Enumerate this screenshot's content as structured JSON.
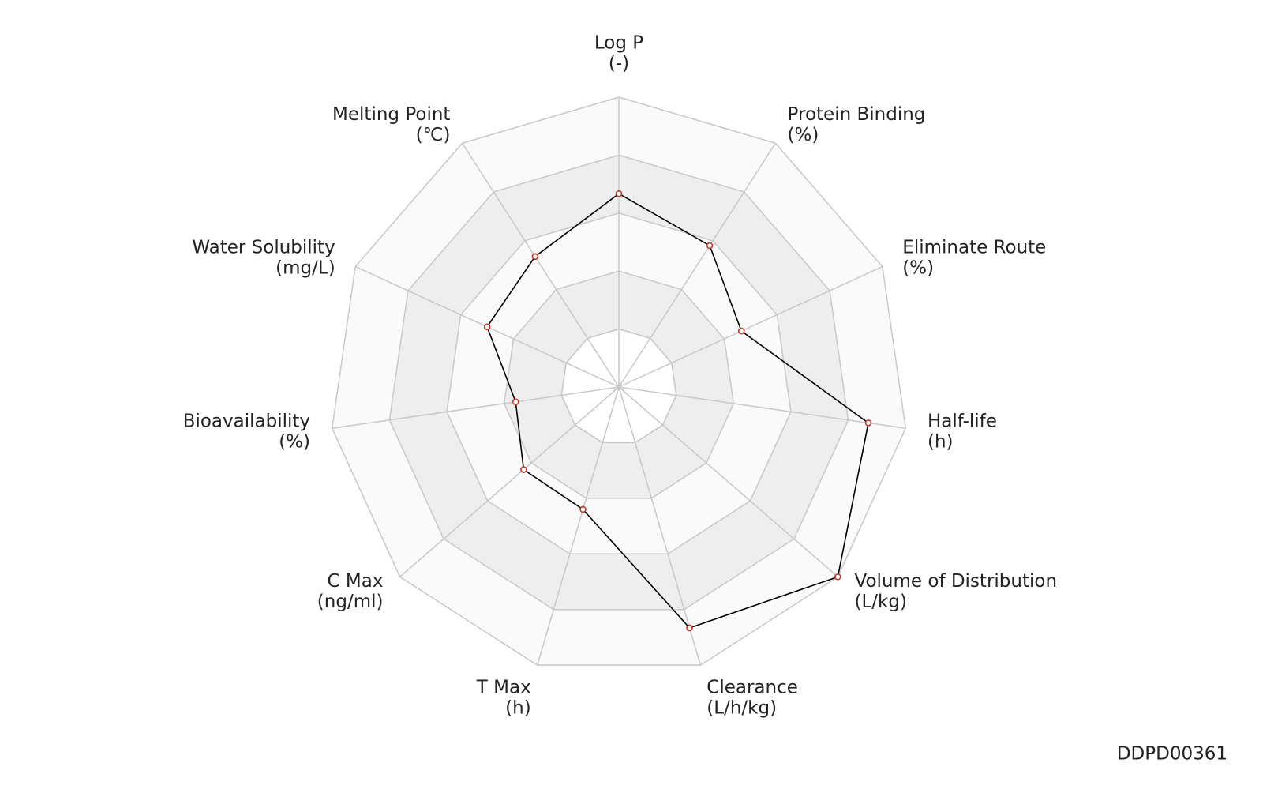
{
  "chart_data": {
    "type": "radar",
    "categories": [
      "Log P",
      "Protein Binding",
      "Eliminate Route",
      "Half-life",
      "Volume of Distribution",
      "Clearance",
      "T Max",
      "C Max",
      "Bioavailability",
      "Water Solubility",
      "Melting Point"
    ],
    "units": [
      "(-)",
      "(%)",
      "(%)",
      "(h)",
      "(L/kg)",
      "(L/h/kg)",
      "(h)",
      "(ng/ml)",
      "(%)",
      "(mg/L)",
      "(℃)"
    ],
    "values": [
      0.667,
      0.58,
      0.465,
      0.87,
      1.0,
      0.866,
      0.44,
      0.435,
      0.36,
      0.5,
      0.535
    ],
    "ylim": [
      0,
      1
    ],
    "yticks": [
      0.2,
      0.4,
      0.6,
      0.8,
      1
    ],
    "color": "#000000",
    "marker_color": "#c0392b",
    "footer": "DDPD00361"
  }
}
